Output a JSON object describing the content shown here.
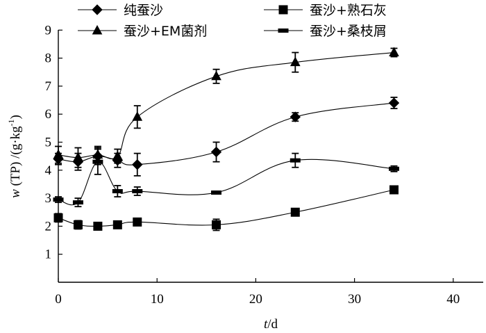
{
  "chart_data": {
    "type": "line",
    "title": "",
    "xlabel_var": "t",
    "xlabel_unit": "/d",
    "ylabel_prefix": "w",
    "ylabel_rest": " (TP) /(g·kg",
    "ylabel_sup": "-1",
    "ylabel_close": ")",
    "xlim": [
      0,
      45
    ],
    "ylim": [
      0,
      9
    ],
    "xticks": [
      0,
      10,
      20,
      30,
      40
    ],
    "yticks": [
      1,
      2,
      3,
      4,
      5,
      6,
      7,
      8,
      9
    ],
    "legend_position": "top",
    "series": [
      {
        "name": "纯蚕沙",
        "marker": "diamond",
        "x": [
          0,
          2,
          4,
          6,
          8,
          16,
          24,
          34
        ],
        "y": [
          4.4,
          4.3,
          4.5,
          4.35,
          4.2,
          4.65,
          5.9,
          6.4
        ],
        "err": [
          0.2,
          0.3,
          0.3,
          0.25,
          0.4,
          0.35,
          0.15,
          0.2
        ]
      },
      {
        "name": "蚕沙+熟石灰",
        "marker": "square",
        "x": [
          0,
          2,
          4,
          6,
          8,
          16,
          24,
          34
        ],
        "y": [
          2.3,
          2.05,
          2.0,
          2.05,
          2.15,
          2.05,
          2.5,
          3.3
        ],
        "err": [
          0.15,
          0.15,
          0.1,
          0.1,
          0.1,
          0.2,
          0.1,
          0.1
        ]
      },
      {
        "name": "蚕沙+EM菌剂",
        "marker": "triangle",
        "x": [
          0,
          2,
          4,
          6,
          8,
          16,
          24,
          34
        ],
        "y": [
          4.55,
          4.45,
          4.55,
          4.5,
          5.9,
          7.35,
          7.85,
          8.2
        ],
        "err": [
          0.3,
          0.35,
          0.3,
          0.25,
          0.4,
          0.25,
          0.35,
          0.15
        ]
      },
      {
        "name": "蚕沙+桑枝屑",
        "marker": "dash",
        "x": [
          0,
          2,
          4,
          6,
          8,
          16,
          24,
          34
        ],
        "y": [
          2.95,
          2.85,
          4.3,
          3.25,
          3.25,
          3.2,
          4.35,
          4.05
        ],
        "err": [
          0.1,
          0.15,
          0.45,
          0.2,
          0.15,
          0.05,
          0.25,
          0.1
        ]
      }
    ]
  }
}
